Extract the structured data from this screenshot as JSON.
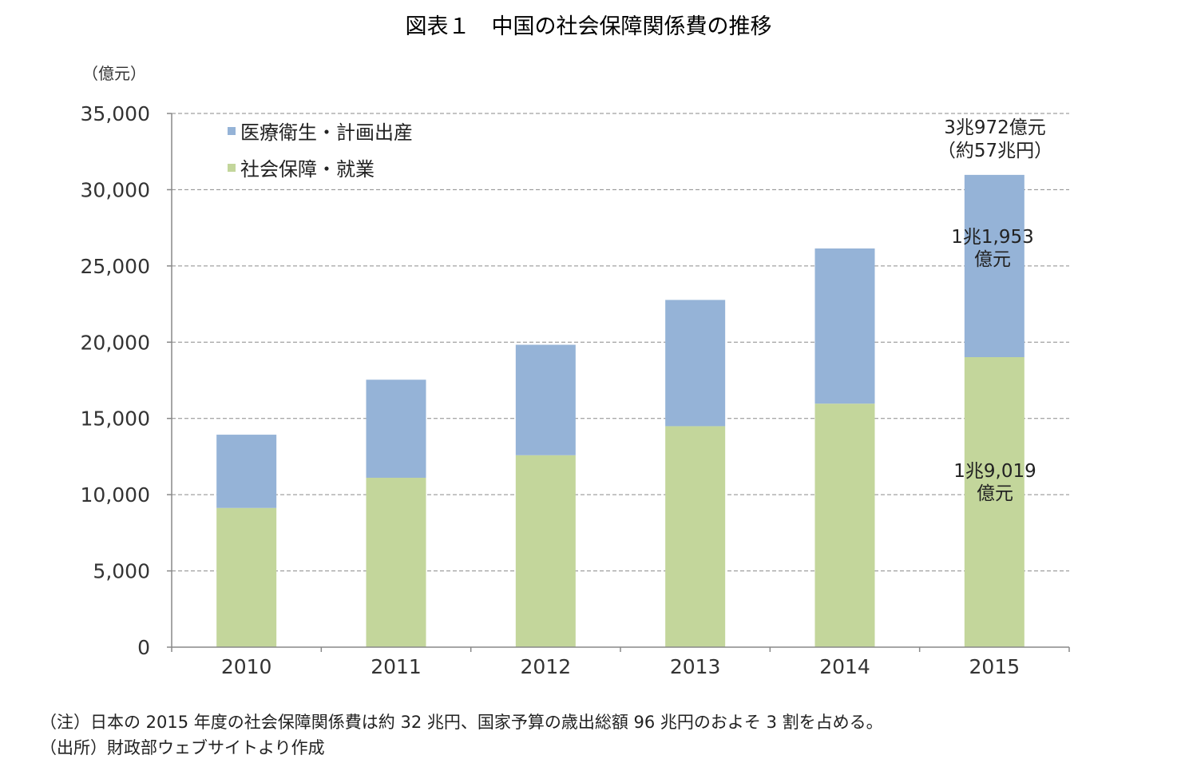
{
  "title": "図表１　中国の社会保障関係費の推移",
  "unit_label": "（億元）",
  "legend": {
    "items": [
      "医療衛生・計画出産",
      "社会保障・就業"
    ],
    "placement": "top-left"
  },
  "colors": {
    "health": "#95b3d7",
    "social": "#c3d69b",
    "grid": "#8a8a8a",
    "axis": "#888888"
  },
  "chart_data": {
    "type": "bar",
    "stacked": true,
    "categories": [
      "2010",
      "2011",
      "2012",
      "2013",
      "2014",
      "2015"
    ],
    "series": [
      {
        "name": "社会保障・就業",
        "values": [
          9130,
          11109,
          12586,
          14491,
          15969,
          19019
        ]
      },
      {
        "name": "医療衛生・計画出産",
        "values": [
          4804,
          6430,
          7245,
          8280,
          10177,
          11953
        ]
      }
    ],
    "ylim": [
      0,
      35000
    ],
    "yticks": [
      "0",
      "5,000",
      "10,000",
      "15,000",
      "20,000",
      "25,000",
      "30,000",
      "35,000"
    ],
    "grid": true,
    "annotations": {
      "total_line1": "3兆972億元",
      "total_line2": "（約57兆円）",
      "health_line1": "1兆1,953",
      "health_line2": "億元",
      "social_line1": "1兆9,019",
      "social_line2": "億元"
    }
  },
  "notes": {
    "note1": "（注）日本の 2015 年度の社会保障関係費は約 32 兆円、国家予算の歳出総額 96 兆円のおよそ 3 割を占める。",
    "note2": "（出所）財政部ウェブサイトより作成"
  }
}
